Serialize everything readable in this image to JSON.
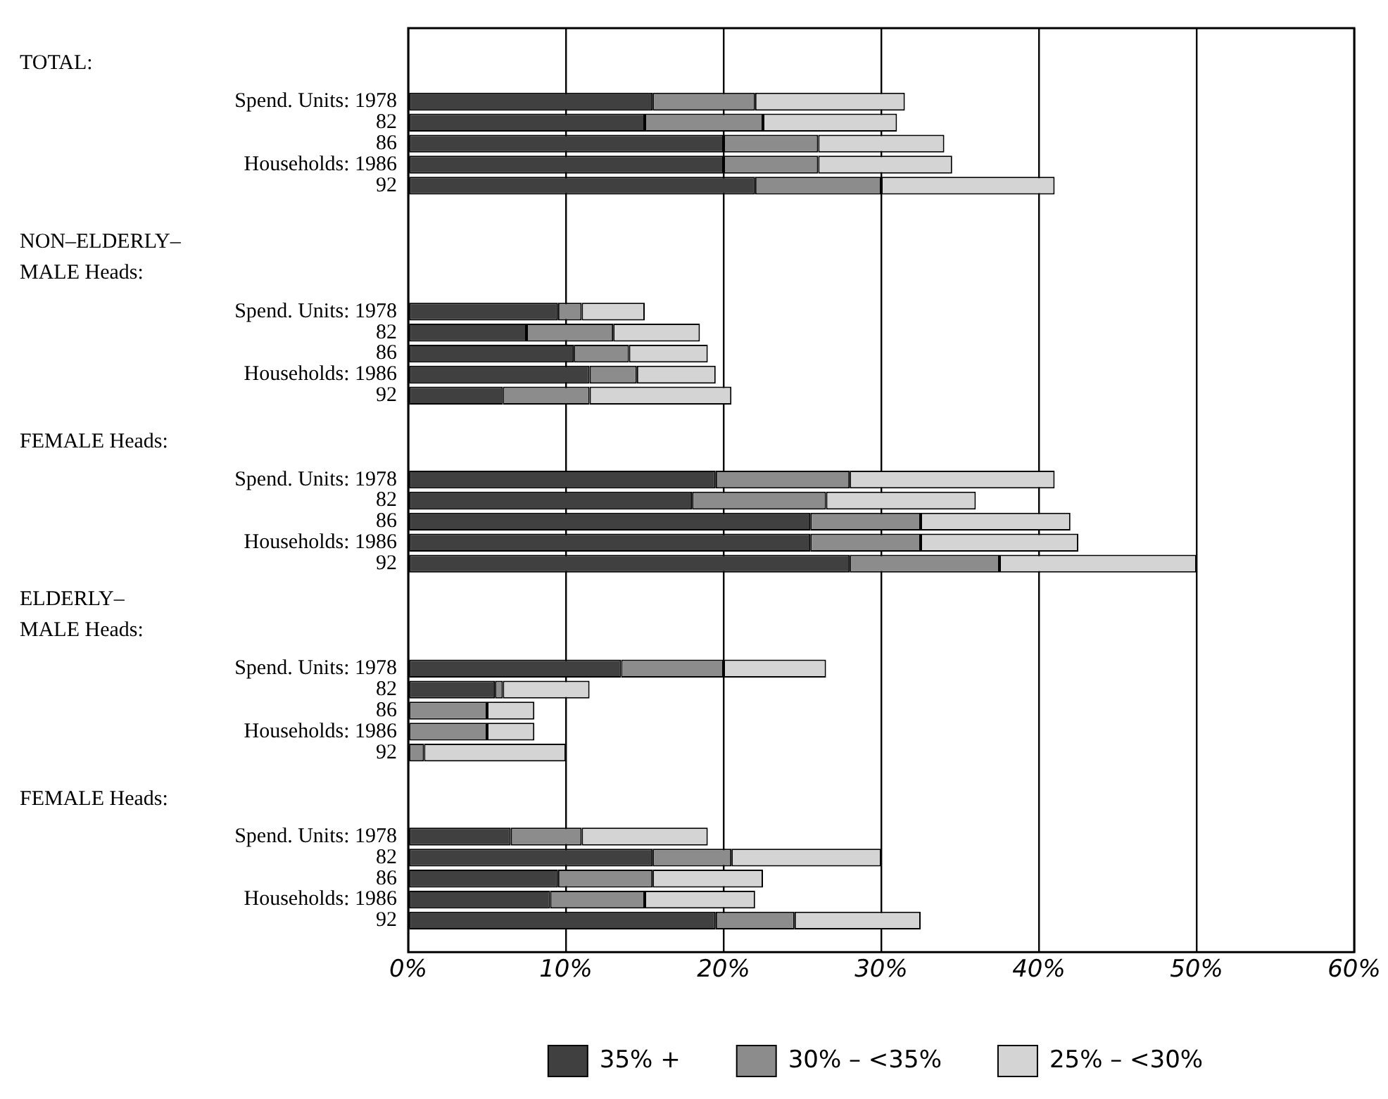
{
  "chart_data": {
    "type": "bar",
    "orientation": "horizontal",
    "stacked": true,
    "categories": [
      null,
      null,
      null,
      "Spend. Units: 1978",
      "82",
      "86",
      "Households: 1986",
      "92",
      null,
      null,
      null,
      null,
      null,
      "Spend. Units: 1978",
      "82",
      "86",
      "Households: 1986",
      "92",
      null,
      null,
      null,
      "Spend. Units: 1978",
      "82",
      "86",
      "Households: 1986",
      "92",
      null,
      null,
      null,
      null,
      "Spend. Units: 1978",
      "82",
      "86",
      "Households: 1986",
      "92",
      null,
      null,
      null,
      "Spend. Units: 1978",
      "82",
      "86",
      "Households: 1986",
      "92",
      null
    ],
    "annotations": [
      "TOTAL:",
      "NON–ELDERLY–\nMALE Heads:",
      "FEMALE Heads:",
      "ELDERLY–\nMALE Heads:",
      "FEMALE Heads:"
    ],
    "series": [
      {
        "name": "35% +",
        "color": "#404040",
        "values": [
          null,
          null,
          null,
          15.5,
          15,
          20,
          20,
          22,
          null,
          null,
          null,
          null,
          null,
          9.5,
          7.5,
          10.5,
          11.5,
          6,
          null,
          null,
          null,
          19.5,
          18,
          25.5,
          25.5,
          28,
          null,
          null,
          null,
          null,
          13.5,
          5.5,
          0,
          0,
          0,
          null,
          null,
          null,
          6.5,
          15.5,
          9.5,
          9,
          19.5,
          null
        ]
      },
      {
        "name": "30% – <35%",
        "color": "#8c8c8c",
        "values": [
          null,
          null,
          null,
          6.5,
          7.5,
          6,
          6,
          8,
          null,
          null,
          null,
          null,
          null,
          1.5,
          5.5,
          3.5,
          3,
          5.5,
          null,
          null,
          null,
          8.5,
          8.5,
          7,
          7,
          9.5,
          null,
          null,
          null,
          null,
          6.5,
          0.5,
          5,
          5,
          1,
          null,
          null,
          null,
          4.5,
          5,
          6,
          6,
          5,
          null
        ]
      },
      {
        "name": "25% – <30%",
        "color": "#d4d4d4",
        "values": [
          null,
          null,
          null,
          9.5,
          8.5,
          8,
          8.5,
          11,
          null,
          null,
          null,
          null,
          null,
          4,
          5.5,
          5,
          5,
          9,
          null,
          null,
          null,
          13,
          9.5,
          9.5,
          10,
          12.5,
          null,
          null,
          null,
          null,
          6.5,
          5.5,
          3,
          3,
          9,
          null,
          null,
          null,
          8,
          9.5,
          7,
          7,
          8,
          null
        ]
      }
    ],
    "xlim": [
      0,
      60
    ],
    "xticks": [
      {
        "value": 0,
        "label": "0%"
      },
      {
        "value": 10,
        "label": "10%"
      },
      {
        "value": 20,
        "label": "20%"
      },
      {
        "value": 30,
        "label": "30%"
      },
      {
        "value": 40,
        "label": "40%"
      },
      {
        "value": 50,
        "label": "50%"
      },
      {
        "value": 60,
        "label": "60%"
      }
    ],
    "grid": "x",
    "legend": "bottom"
  }
}
